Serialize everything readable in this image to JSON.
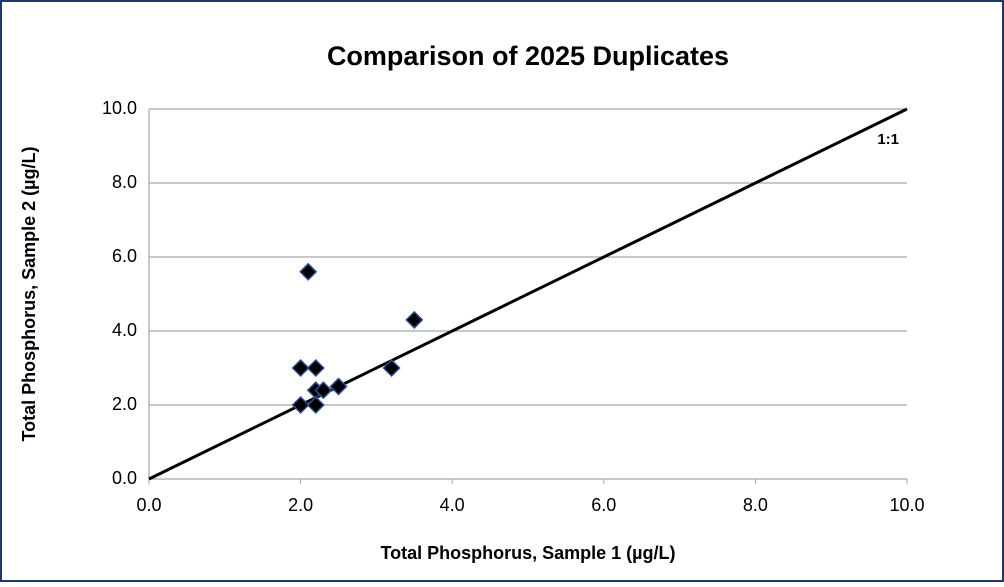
{
  "chart_data": {
    "type": "scatter",
    "title": "Comparison of 2025 Duplicates",
    "x_label": "Total Phosphorus, Sample 1 (µg/L)",
    "y_label": "Total Phosphorus, Sample 2 (µg/L)",
    "series": [
      {
        "color": "#000000",
        "x": [
          2.0,
          2.0,
          2.1,
          2.2,
          2.2,
          2.2,
          2.3,
          2.5,
          3.2,
          3.5
        ],
        "values": [
          2.0,
          3.0,
          5.6,
          3.0,
          2.4,
          2.0,
          2.4,
          2.5,
          3.0,
          4.3
        ]
      }
    ],
    "reference_line": {
      "label": "1:1",
      "x": [
        0,
        10
      ],
      "y": [
        0,
        10
      ]
    },
    "xlim": [
      0,
      10
    ],
    "ylim": [
      0,
      10
    ],
    "xticks": [
      {
        "value": 0,
        "label": "0.0"
      },
      {
        "value": 2,
        "label": "2.0"
      },
      {
        "value": 4,
        "label": "4.0"
      },
      {
        "value": 6,
        "label": "6.0"
      },
      {
        "value": 8,
        "label": "8.0"
      },
      {
        "value": 10,
        "label": "10.0"
      }
    ],
    "yticks": [
      {
        "value": 0,
        "label": "0.0"
      },
      {
        "value": 2,
        "label": "2.0"
      },
      {
        "value": 4,
        "label": "4.0"
      },
      {
        "value": 6,
        "label": "6.0"
      },
      {
        "value": 8,
        "label": "8.0"
      },
      {
        "value": 10,
        "label": "10.0"
      }
    ],
    "grid": true
  }
}
